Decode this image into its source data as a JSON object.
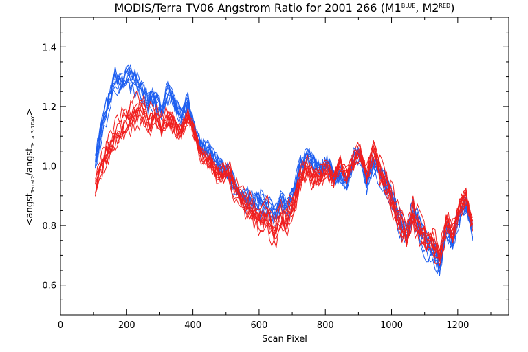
{
  "chart_data": {
    "type": "line",
    "title": {
      "main": "MODIS/Terra TV06 Angstrom Ratio for 2001 266 (M1",
      "sup1": "BLUE",
      "mid": ", M2",
      "sup2": "RED",
      "end": ")"
    },
    "xlabel": "Scan Pixel",
    "ylabel": {
      "pre": "<angst",
      "sub1": "TerraL2",
      "mid": "/angst",
      "sub2": "TerraL3:7DAY",
      "post": ">"
    },
    "xlim": [
      0,
      1354
    ],
    "ylim": [
      0.5,
      1.5
    ],
    "xticks": [
      0,
      200,
      400,
      600,
      800,
      1000,
      1200
    ],
    "xtick_labels": [
      "0",
      "200",
      "400",
      "600",
      "800",
      "1000",
      "1200"
    ],
    "yticks": [
      0.6,
      0.8,
      1.0,
      1.2,
      1.4
    ],
    "ytick_labels": [
      "0.6",
      "0.8",
      "1.0",
      "1.2",
      "1.4"
    ],
    "reference_line": 1.0,
    "colors": {
      "blue": "#1e5ff0",
      "red": "#f01e1e",
      "reference": "#000000"
    },
    "series": [
      {
        "color": "blue",
        "curves": 10,
        "x": [
          105,
          125,
          145,
          165,
          185,
          205,
          225,
          245,
          265,
          285,
          305,
          325,
          345,
          365,
          385,
          405,
          425,
          445,
          465,
          485,
          505,
          525,
          545,
          565,
          585,
          605,
          625,
          645,
          665,
          685,
          705,
          725,
          745,
          765,
          785,
          805,
          825,
          845,
          865,
          885,
          905,
          925,
          945,
          965,
          985,
          1005,
          1025,
          1045,
          1065,
          1085,
          1105,
          1125,
          1145,
          1165,
          1185,
          1205,
          1225,
          1245
        ],
        "y": [
          1.0,
          1.12,
          1.2,
          1.28,
          1.26,
          1.29,
          1.27,
          1.25,
          1.2,
          1.22,
          1.17,
          1.24,
          1.2,
          1.16,
          1.21,
          1.12,
          1.06,
          1.05,
          1.02,
          0.99,
          0.97,
          0.93,
          0.88,
          0.87,
          0.86,
          0.86,
          0.85,
          0.81,
          0.86,
          0.84,
          0.9,
          0.99,
          1.02,
          1.0,
          0.98,
          1.01,
          0.96,
          0.97,
          0.94,
          1.02,
          1.03,
          0.94,
          1.0,
          0.96,
          0.92,
          0.87,
          0.8,
          0.75,
          0.83,
          0.77,
          0.72,
          0.71,
          0.65,
          0.78,
          0.74,
          0.83,
          0.86,
          0.78
        ]
      },
      {
        "color": "red",
        "curves": 10,
        "x": [
          105,
          125,
          145,
          165,
          185,
          205,
          225,
          245,
          265,
          285,
          305,
          325,
          345,
          365,
          385,
          405,
          425,
          445,
          465,
          485,
          505,
          525,
          545,
          565,
          585,
          605,
          625,
          645,
          665,
          685,
          705,
          725,
          745,
          765,
          785,
          805,
          825,
          845,
          865,
          885,
          905,
          925,
          945,
          965,
          985,
          1005,
          1025,
          1045,
          1065,
          1085,
          1105,
          1125,
          1145,
          1165,
          1185,
          1205,
          1225,
          1245
        ],
        "y": [
          0.93,
          1.0,
          1.06,
          1.1,
          1.13,
          1.16,
          1.18,
          1.19,
          1.15,
          1.17,
          1.13,
          1.16,
          1.14,
          1.11,
          1.17,
          1.11,
          1.04,
          1.02,
          0.99,
          0.97,
          0.99,
          0.93,
          0.9,
          0.87,
          0.84,
          0.83,
          0.84,
          0.78,
          0.83,
          0.82,
          0.88,
          0.97,
          0.99,
          0.96,
          0.97,
          0.99,
          0.95,
          1.01,
          0.97,
          1.02,
          1.05,
          0.97,
          1.05,
          0.98,
          0.94,
          0.87,
          0.82,
          0.77,
          0.84,
          0.79,
          0.75,
          0.75,
          0.69,
          0.81,
          0.78,
          0.86,
          0.9,
          0.8
        ]
      }
    ]
  }
}
